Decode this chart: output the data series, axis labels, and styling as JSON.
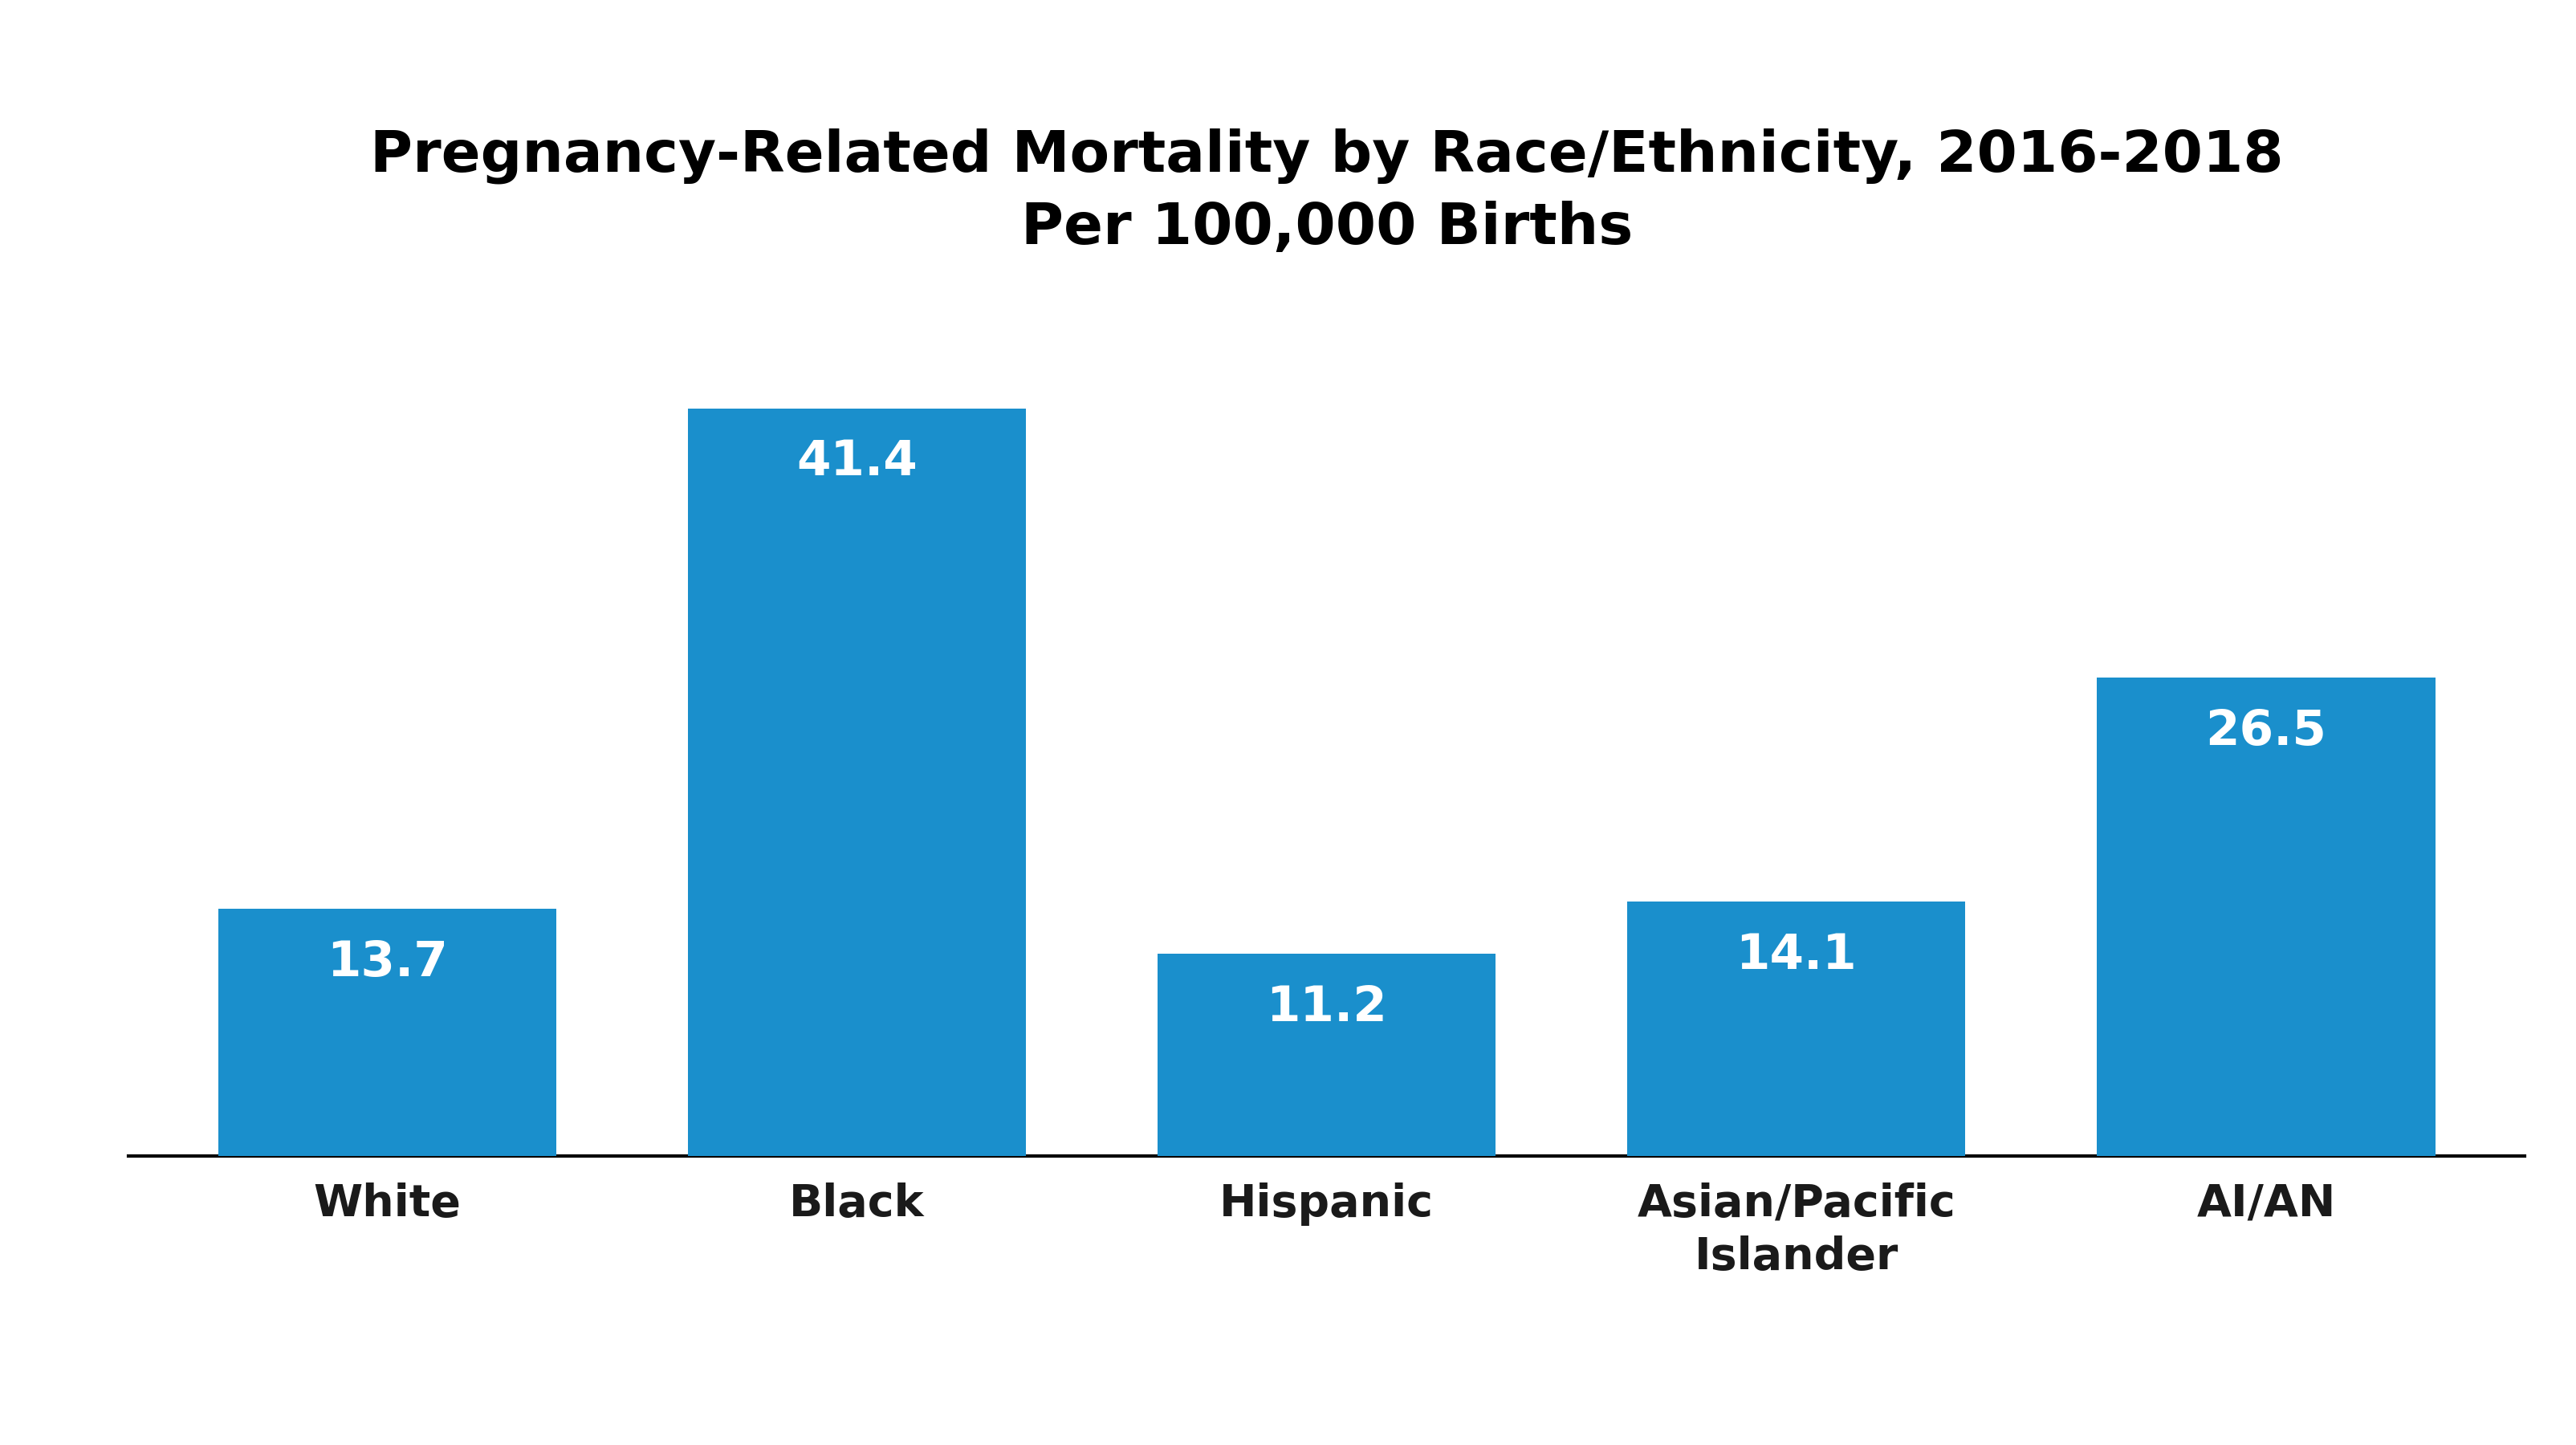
{
  "title_line1": "Pregnancy-Related Mortality by Race/Ethnicity, 2016-2018",
  "title_line2": "Per 100,000 Births",
  "categories": [
    "White",
    "Black",
    "Hispanic",
    "Asian/Pacific\nIslander",
    "AI/AN"
  ],
  "values": [
    13.7,
    41.4,
    11.2,
    14.1,
    26.5
  ],
  "bar_color": "#1a8fcc",
  "bar_label_color": "#ffffff",
  "title_color": "#000000",
  "xlabel_color": "#1a1a1a",
  "background_color": "#ffffff",
  "bar_width": 0.72,
  "ylim": [
    0,
    48
  ],
  "title_fontsize": 52,
  "subtitle_fontsize": 52,
  "tick_fontsize": 40,
  "value_fontsize": 44
}
